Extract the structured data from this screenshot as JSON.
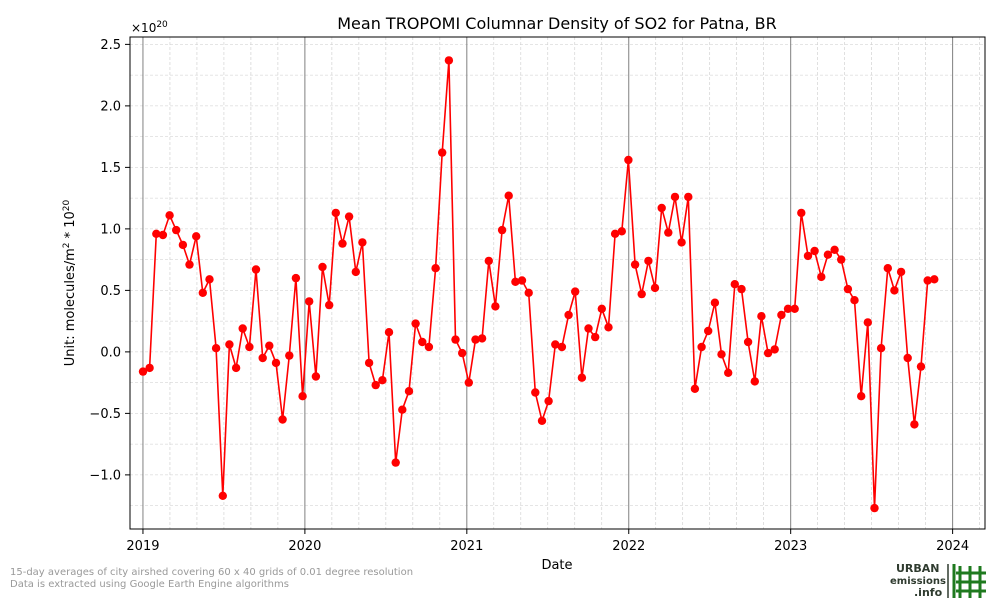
{
  "chart_data": {
    "type": "line",
    "title": "Mean TROPOMI Columnar Density of SO2 for Patna, BR",
    "xlabel": "Date",
    "ylabel": "Unit: molecules/m",
    "ylabel_sup": "2",
    "ylabel_tail": " * 10",
    "ylabel_sup2": "20",
    "y_multiplier_label": "×10",
    "y_multiplier_exp": "20",
    "xlim": [
      2018.92,
      2024.2
    ],
    "ylim": [
      -1.44,
      2.56
    ],
    "x_ticks": [
      2019,
      2020,
      2021,
      2022,
      2023,
      2024
    ],
    "x_tick_labels": [
      "2019",
      "2020",
      "2021",
      "2022",
      "2023",
      "2024"
    ],
    "y_ticks": [
      -1.0,
      -0.5,
      0.0,
      0.5,
      1.0,
      1.5,
      2.0,
      2.5
    ],
    "y_tick_labels": [
      "−1.0",
      "−0.5",
      "0.0",
      "0.5",
      "1.0",
      "1.5",
      "2.0",
      "2.5"
    ],
    "grid": true,
    "series_color": "#ff0000",
    "x_start": 2019.0,
    "x_step_days": 15,
    "y": [
      -0.16,
      -0.13,
      0.96,
      0.95,
      1.11,
      0.99,
      0.87,
      0.71,
      0.94,
      0.48,
      0.59,
      0.03,
      -1.17,
      0.06,
      -0.13,
      0.19,
      0.04,
      0.67,
      -0.05,
      0.05,
      -0.09,
      -0.55,
      -0.03,
      0.6,
      -0.36,
      0.41,
      -0.2,
      0.69,
      0.38,
      1.13,
      0.88,
      1.1,
      0.65,
      0.89,
      -0.09,
      -0.27,
      -0.23,
      0.16,
      -0.9,
      -0.47,
      -0.32,
      0.23,
      0.08,
      0.04,
      0.68,
      1.62,
      2.37,
      0.1,
      -0.01,
      -0.25,
      0.1,
      0.11,
      0.74,
      0.37,
      0.99,
      1.27,
      0.57,
      0.58,
      0.48,
      -0.33,
      -0.56,
      -0.4,
      0.06,
      0.04,
      0.3,
      0.49,
      -0.21,
      0.19,
      0.12,
      0.35,
      0.2,
      0.96,
      0.98,
      1.56,
      0.71,
      0.47,
      0.74,
      0.52,
      1.17,
      0.97,
      1.26,
      0.89,
      1.26,
      -0.3,
      0.04,
      0.17,
      0.4,
      -0.02,
      -0.17,
      0.55,
      0.51,
      0.08,
      -0.24,
      0.29,
      -0.01,
      0.02,
      0.3,
      0.35,
      0.35,
      1.13,
      0.78,
      0.82,
      0.61,
      0.79,
      0.83,
      0.75,
      0.51,
      0.42,
      -0.36,
      0.24,
      -1.27,
      0.03,
      0.68,
      0.5,
      0.65,
      -0.05,
      -0.59,
      -0.12,
      0.58,
      0.59
    ]
  },
  "footnotes": {
    "line1": "15-day averages of city airshed covering 60 x 40 grids of 0.01 degree resolution",
    "line2": "Data is extracted using Google Earth Engine algorithms"
  },
  "logo": {
    "line1": "URBAN",
    "line2": "emissions",
    "line3": ".info",
    "color_text": "#2f3b2f",
    "color_green": "#1f7a1f"
  }
}
